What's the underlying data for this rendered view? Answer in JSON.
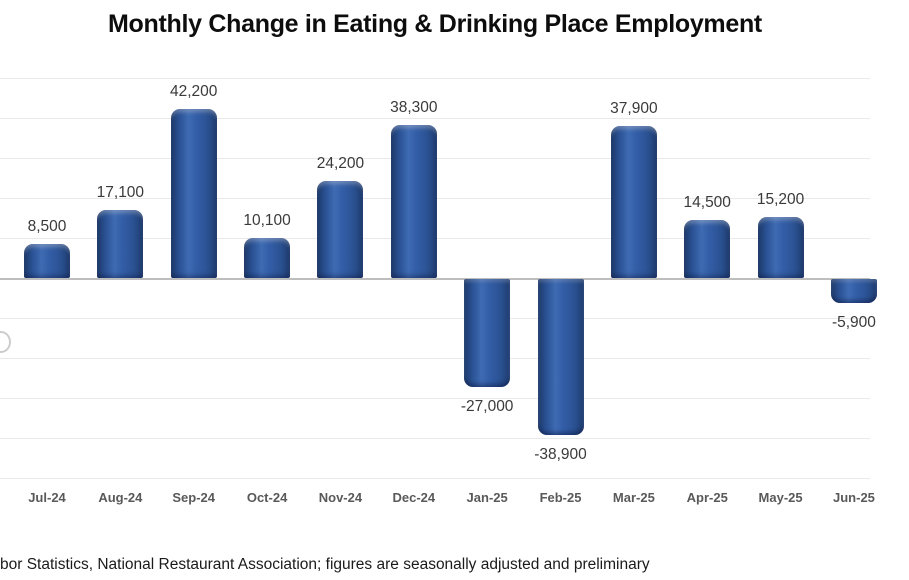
{
  "title": "Monthly Change in Eating & Drinking Place Employment",
  "footer": "bor Statistics, National Restaurant Association; figures are seasonally adjusted and preliminary",
  "chart_data": {
    "type": "bar",
    "title": "Monthly Change in Eating & Drinking Place Employment",
    "categories": [
      "Jul-24",
      "Aug-24",
      "Sep-24",
      "Oct-24",
      "Nov-24",
      "Dec-24",
      "Jan-25",
      "Feb-25",
      "Mar-25",
      "Apr-25",
      "May-25",
      "Jun-25"
    ],
    "values": [
      8500,
      17100,
      42200,
      10100,
      24200,
      38300,
      -27000,
      -38900,
      37900,
      14500,
      15200,
      -5900
    ],
    "data_labels": [
      "8,500",
      "17,100",
      "42,200",
      "10,100",
      "24,200",
      "38,300",
      "-27,000",
      "-38,900",
      "37,900",
      "14,500",
      "15,200",
      "-5,900"
    ],
    "xlabel": "",
    "ylabel": "",
    "ylim": [
      -50000,
      50000
    ],
    "gridline_interval": 10000,
    "grid": true,
    "legend_position": "none",
    "data_labels_visible": true,
    "colors": {
      "bar_fill": "#2f5aa3",
      "bar_edge_dark": "#1d3a6b",
      "bar_highlight": "#3e6bb3",
      "gridline": "#e9e9e9",
      "zero_axis": "#bdbdbd",
      "value_label": "#3a3a3a",
      "category_label": "#595959",
      "title_text": "#0d0d0d",
      "background": "#ffffff"
    },
    "notes_visible_crop": "left and right edges of plot are cropped; last column (Jun-25 / -5,900) partially clipped"
  }
}
